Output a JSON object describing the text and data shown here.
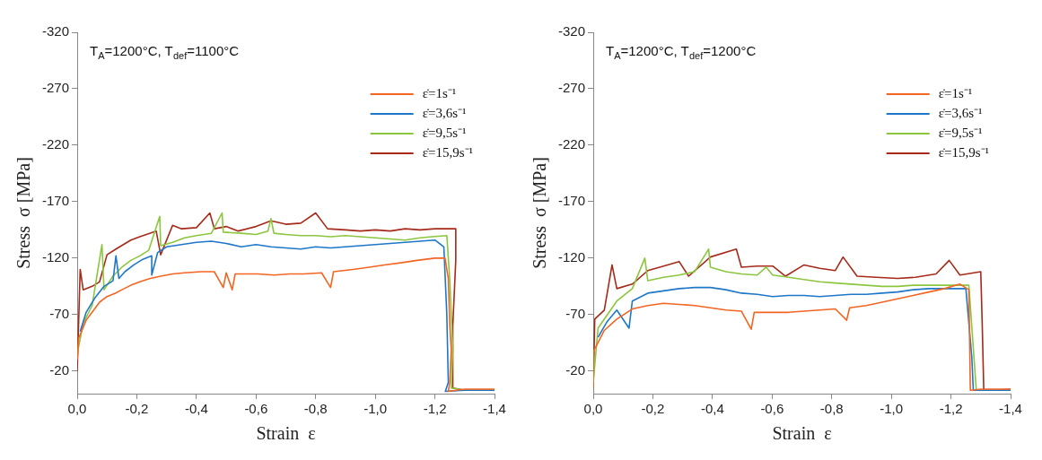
{
  "chart_data": [
    {
      "type": "line",
      "title": "T$_{A}$=1200°C, T$_{def}$=1100°C",
      "xlabel": "Strain  ε",
      "ylabel": "Stress  σ [MPa]",
      "legend": "top right",
      "xlim": [
        0,
        -1.4
      ],
      "xticks": [
        {
          "value": 0,
          "label": "0,0"
        },
        {
          "value": -0.2,
          "label": "-0,2"
        },
        {
          "value": -0.4,
          "label": "-0,4"
        },
        {
          "value": -0.6,
          "label": "-0,6"
        },
        {
          "value": -0.8,
          "label": "-0,8"
        },
        {
          "value": -1.0,
          "label": "-1,0"
        },
        {
          "value": -1.2,
          "label": "-1,2"
        },
        {
          "value": -1.4,
          "label": "-1,4"
        }
      ],
      "ylim": [
        0,
        -320
      ],
      "yticks": [
        -20,
        -70,
        -120,
        -170,
        -220,
        -270,
        -320
      ],
      "series": [
        {
          "name": "ε̇=1s⁻¹",
          "color": "#f26522",
          "x": [
            0,
            -0.005,
            -0.03,
            -0.05,
            -0.075,
            -0.1,
            -0.128,
            -0.15,
            -0.18,
            -0.21,
            -0.245,
            -0.28,
            -0.32,
            -0.36,
            -0.415,
            -0.46,
            -0.49,
            -0.5,
            -0.52,
            -0.53,
            -0.56,
            -0.606,
            -0.66,
            -0.713,
            -0.76,
            -0.82,
            -0.85,
            -0.86,
            -0.925,
            -0.98,
            -1.03,
            -1.09,
            -1.14,
            -1.2,
            -1.234,
            -1.245,
            -1.25,
            -1.255,
            -1.25,
            -1.245,
            -1.3,
            -1.4
          ],
          "values": [
            -30,
            -49,
            -65,
            -72,
            -81,
            -86,
            -89,
            -92,
            -96,
            -99,
            -102,
            -104,
            -106,
            -107,
            -108,
            -108,
            -94,
            -107,
            -92,
            -106,
            -106,
            -106,
            -105,
            -106,
            -106,
            -107,
            -94,
            -108,
            -110,
            -112,
            -114,
            -116,
            -118,
            -120,
            -120,
            -102,
            -60,
            -39,
            -10,
            -2,
            -4,
            -4
          ]
        },
        {
          "name": "ε̇=3,6s⁻¹",
          "color": "#1f77c8",
          "x": [
            -0.01,
            -0.03,
            -0.06,
            -0.09,
            -0.12,
            -0.13,
            -0.14,
            -0.16,
            -0.19,
            -0.22,
            -0.25,
            -0.25,
            -0.27,
            -0.3,
            -0.35,
            -0.4,
            -0.45,
            -0.5,
            -0.55,
            -0.6,
            -0.65,
            -0.7,
            -0.75,
            -0.8,
            -0.85,
            -0.9,
            -0.95,
            -1.0,
            -1.05,
            -1.1,
            -1.15,
            -1.2,
            -1.23,
            -1.24,
            -1.245,
            -1.235,
            -1.3,
            -1.4
          ],
          "values": [
            -55,
            -72,
            -85,
            -95,
            -100,
            -122,
            -102,
            -108,
            -114,
            -119,
            -122,
            -105,
            -125,
            -130,
            -132,
            -134,
            -135,
            -133,
            -130,
            -132,
            -130,
            -129,
            -128,
            -130,
            -129,
            -130,
            -131,
            -132,
            -133,
            -134,
            -135,
            -136,
            -130,
            -70,
            -10,
            -2,
            -3,
            -3
          ]
        },
        {
          "name": "ε̇=9,5s⁻¹",
          "color": "#8cc63f",
          "x": [
            0,
            -0.02,
            -0.05,
            -0.083,
            -0.09,
            -0.12,
            -0.15,
            -0.18,
            -0.21,
            -0.24,
            -0.277,
            -0.28,
            -0.32,
            -0.36,
            -0.4,
            -0.45,
            -0.486,
            -0.49,
            -0.55,
            -0.6,
            -0.64,
            -0.65,
            -0.66,
            -0.7,
            -0.75,
            -0.8,
            -0.85,
            -0.9,
            -0.95,
            -1.0,
            -1.05,
            -1.1,
            -1.15,
            -1.19,
            -1.24,
            -1.25,
            -1.26,
            -1.255,
            -1.3,
            -1.4
          ],
          "values": [
            -35,
            -62,
            -78,
            -132,
            -92,
            -104,
            -112,
            -118,
            -122,
            -127,
            -157,
            -131,
            -134,
            -138,
            -140,
            -142,
            -160,
            -143,
            -142,
            -141,
            -144,
            -155,
            -142,
            -141,
            -140,
            -140,
            -139,
            -140,
            -139,
            -138,
            -137,
            -136,
            -138,
            -139,
            -140,
            -100,
            -40,
            -5,
            -3,
            -3
          ]
        },
        {
          "name": "ε̇=15,9s⁻¹",
          "color": "#a52a1a",
          "x": [
            0,
            -0.01,
            -0.02,
            -0.05,
            -0.075,
            -0.1,
            -0.13,
            -0.18,
            -0.21,
            -0.265,
            -0.28,
            -0.32,
            -0.35,
            -0.4,
            -0.445,
            -0.46,
            -0.5,
            -0.54,
            -0.6,
            -0.65,
            -0.7,
            -0.75,
            -0.8,
            -0.84,
            -0.9,
            -0.95,
            -1.0,
            -1.05,
            -1.1,
            -1.15,
            -1.2,
            -1.27,
            -1.27,
            -1.26,
            -1.26,
            -1.3,
            -1.4
          ],
          "values": [
            -20,
            -110,
            -92,
            -95,
            -99,
            -123,
            -128,
            -136,
            -139,
            -144,
            -123,
            -149,
            -146,
            -147,
            -160,
            -146,
            -148,
            -144,
            -148,
            -153,
            -150,
            -151,
            -160,
            -146,
            -145,
            -144,
            -145,
            -144,
            -146,
            -145,
            -146,
            -146,
            -118,
            -60,
            -5,
            -3,
            -3
          ]
        }
      ]
    },
    {
      "type": "line",
      "title": "T$_{A}$=1200°C, T$_{def}$=1200°C",
      "xlabel": "Strain  ε",
      "ylabel": "Stress  σ [MPa]",
      "legend": "top right",
      "xlim": [
        0,
        -1.4
      ],
      "xticks": [
        {
          "value": 0,
          "label": "0,0"
        },
        {
          "value": -0.2,
          "label": "-0,2"
        },
        {
          "value": -0.4,
          "label": "-0,4"
        },
        {
          "value": -0.6,
          "label": "-0,6"
        },
        {
          "value": -0.8,
          "label": "-0,8"
        },
        {
          "value": -1.0,
          "label": "-1,0"
        },
        {
          "value": -1.2,
          "label": "-1,2"
        },
        {
          "value": -1.4,
          "label": "-1,4"
        }
      ],
      "ylim": [
        0,
        -320
      ],
      "yticks": [
        -20,
        -70,
        -120,
        -170,
        -220,
        -270,
        -320
      ],
      "series": [
        {
          "name": "ε̇=1s⁻¹",
          "color": "#f26522",
          "x": [
            0,
            0,
            -0.037,
            -0.079,
            -0.131,
            -0.183,
            -0.236,
            -0.288,
            -0.34,
            -0.393,
            -0.445,
            -0.497,
            -0.53,
            -0.54,
            -0.602,
            -0.655,
            -0.707,
            -0.76,
            -0.812,
            -0.85,
            -0.86,
            -0.916,
            -0.969,
            -1.021,
            -1.073,
            -1.126,
            -1.178,
            -1.23,
            -1.26,
            -1.265,
            -1.3,
            -1.4
          ],
          "values": [
            -5,
            -37,
            -56,
            -66,
            -75,
            -78,
            -80,
            -79,
            -78,
            -76,
            -74,
            -73,
            -57,
            -72,
            -72,
            -72,
            -73,
            -74,
            -75,
            -65,
            -76,
            -78,
            -81,
            -84,
            -87,
            -90,
            -93,
            -97,
            -92,
            -3,
            -4,
            -4
          ]
        },
        {
          "name": "ε̇=3,6s⁻¹",
          "color": "#1f77c8",
          "x": [
            -0.016,
            -0.047,
            -0.079,
            -0.12,
            -0.131,
            -0.183,
            -0.236,
            -0.288,
            -0.34,
            -0.393,
            -0.445,
            -0.497,
            -0.55,
            -0.602,
            -0.655,
            -0.707,
            -0.76,
            -0.812,
            -0.864,
            -0.916,
            -0.969,
            -1.021,
            -1.073,
            -1.126,
            -1.2,
            -1.25,
            -1.27,
            -1.275,
            -1.3,
            -1.4
          ],
          "values": [
            -50,
            -64,
            -74,
            -58,
            -82,
            -89,
            -91,
            -93,
            -94,
            -94,
            -92,
            -89,
            -88,
            -86,
            -87,
            -87,
            -86,
            -87,
            -88,
            -88,
            -89,
            -90,
            -92,
            -93,
            -93,
            -93,
            -32,
            -3,
            -3,
            -3
          ]
        },
        {
          "name": "ε̇=9,5s⁻¹",
          "color": "#8cc63f",
          "x": [
            0,
            -0.016,
            -0.079,
            -0.131,
            -0.173,
            -0.183,
            -0.236,
            -0.288,
            -0.34,
            -0.387,
            -0.393,
            -0.445,
            -0.497,
            -0.55,
            -0.58,
            -0.602,
            -0.655,
            -0.707,
            -0.76,
            -0.812,
            -0.864,
            -0.916,
            -0.969,
            -1.021,
            -1.073,
            -1.126,
            -1.2,
            -1.26,
            -1.285,
            -1.3,
            -1.4
          ],
          "values": [
            -10,
            -58,
            -82,
            -93,
            -120,
            -100,
            -103,
            -105,
            -108,
            -128,
            -112,
            -108,
            -106,
            -105,
            -112,
            -105,
            -103,
            -101,
            -99,
            -98,
            -97,
            -96,
            -95,
            -95,
            -96,
            -96,
            -96,
            -96,
            -3,
            -3,
            -3
          ]
        },
        {
          "name": "ε̇=15,9s⁻¹",
          "color": "#a52a1a",
          "x": [
            0,
            -0.005,
            -0.037,
            -0.063,
            -0.079,
            -0.131,
            -0.183,
            -0.236,
            -0.288,
            -0.32,
            -0.393,
            -0.48,
            -0.497,
            -0.55,
            -0.602,
            -0.645,
            -0.707,
            -0.76,
            -0.812,
            -0.838,
            -0.885,
            -0.95,
            -1.021,
            -1.08,
            -1.15,
            -1.194,
            -1.23,
            -1.3,
            -1.305,
            -1.31,
            -1.35,
            -1.4
          ],
          "values": [
            -5,
            -66,
            -74,
            -114,
            -93,
            -97,
            -109,
            -113,
            -117,
            -104,
            -121,
            -128,
            -112,
            -113,
            -113,
            -104,
            -114,
            -111,
            -109,
            -121,
            -104,
            -103,
            -102,
            -103,
            -106,
            -118,
            -105,
            -108,
            -60,
            -3,
            -3,
            -4
          ]
        }
      ]
    }
  ]
}
